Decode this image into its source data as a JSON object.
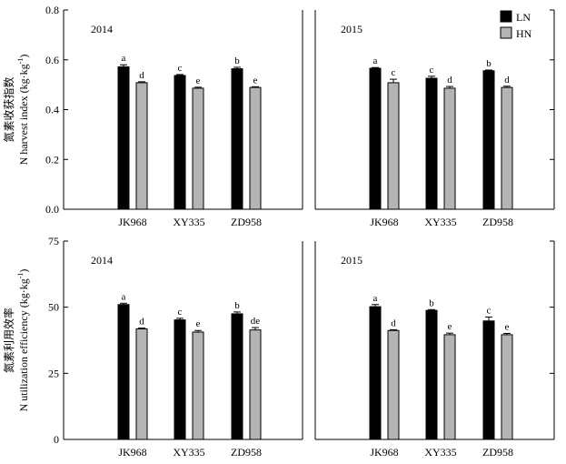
{
  "chart_data": [
    {
      "type": "bar",
      "year": "2014",
      "categories": [
        "JK968",
        "XY335",
        "ZD958"
      ],
      "series": [
        {
          "name": "LN",
          "values": [
            0.572,
            0.537,
            0.564
          ],
          "errors": [
            0.008,
            0.004,
            0.006
          ],
          "letters": [
            "a",
            "c",
            "b"
          ]
        },
        {
          "name": "HN",
          "values": [
            0.508,
            0.486,
            0.489
          ],
          "errors": [
            0.004,
            0.004,
            0.003
          ],
          "letters": [
            "d",
            "e",
            "e"
          ]
        }
      ],
      "ylim": [
        0,
        0.8
      ],
      "yticks": [
        "0.0",
        "0.2",
        "0.4",
        "0.6",
        "0.8"
      ],
      "ylabel_cn": "氮素收获指数",
      "ylabel_en": "N harvest index (kg·kg",
      "ylabel_sup": "-1",
      "ylabel_close": ")"
    },
    {
      "type": "bar",
      "year": "2015",
      "categories": [
        "JK968",
        "XY335",
        "ZD958"
      ],
      "series": [
        {
          "name": "LN",
          "values": [
            0.566,
            0.526,
            0.556
          ],
          "errors": [
            0.003,
            0.008,
            0.003
          ],
          "letters": [
            "a",
            "c",
            "b"
          ]
        },
        {
          "name": "HN",
          "values": [
            0.508,
            0.486,
            0.489
          ],
          "errors": [
            0.014,
            0.007,
            0.005
          ],
          "letters": [
            "c",
            "d",
            "d"
          ]
        }
      ],
      "ylim": [
        0,
        0.8
      ],
      "yticks": [
        "0.0",
        "0.2",
        "0.4",
        "0.6",
        "0.8"
      ]
    },
    {
      "type": "bar",
      "year": "2014",
      "categories": [
        "JK968",
        "XY335",
        "ZD958"
      ],
      "series": [
        {
          "name": "LN",
          "values": [
            51.0,
            45.2,
            47.5
          ],
          "errors": [
            0.5,
            0.6,
            0.7
          ],
          "letters": [
            "a",
            "c",
            "b"
          ]
        },
        {
          "name": "HN",
          "values": [
            41.8,
            40.6,
            41.4
          ],
          "errors": [
            0.3,
            0.6,
            0.9
          ],
          "letters": [
            "d",
            "e",
            "de"
          ]
        }
      ],
      "ylim": [
        0,
        75
      ],
      "yticks": [
        "0",
        "25",
        "50",
        "75"
      ],
      "ylabel_cn": "氮素利用效率",
      "ylabel_en": "N utilization efficiency (kg·kg",
      "ylabel_sup": "-1",
      "ylabel_close": ")"
    },
    {
      "type": "bar",
      "year": "2015",
      "categories": [
        "JK968",
        "XY335",
        "ZD958"
      ],
      "series": [
        {
          "name": "LN",
          "values": [
            50.2,
            48.8,
            44.8
          ],
          "errors": [
            0.8,
            0.3,
            1.5
          ],
          "letters": [
            "a",
            "b",
            "c"
          ]
        },
        {
          "name": "HN",
          "values": [
            41.2,
            39.6,
            39.6
          ],
          "errors": [
            0.3,
            0.6,
            0.5
          ],
          "letters": [
            "d",
            "e",
            "e"
          ]
        }
      ],
      "ylim": [
        0,
        75
      ],
      "yticks": []
    }
  ],
  "legend": [
    {
      "label": "LN",
      "color": "#000000"
    },
    {
      "label": "HN",
      "color": "#b4b4b4"
    }
  ],
  "colors": {
    "LN": "#000000",
    "HN": "#b4b4b4",
    "axis": "#000000"
  },
  "legend_position": "top-right"
}
